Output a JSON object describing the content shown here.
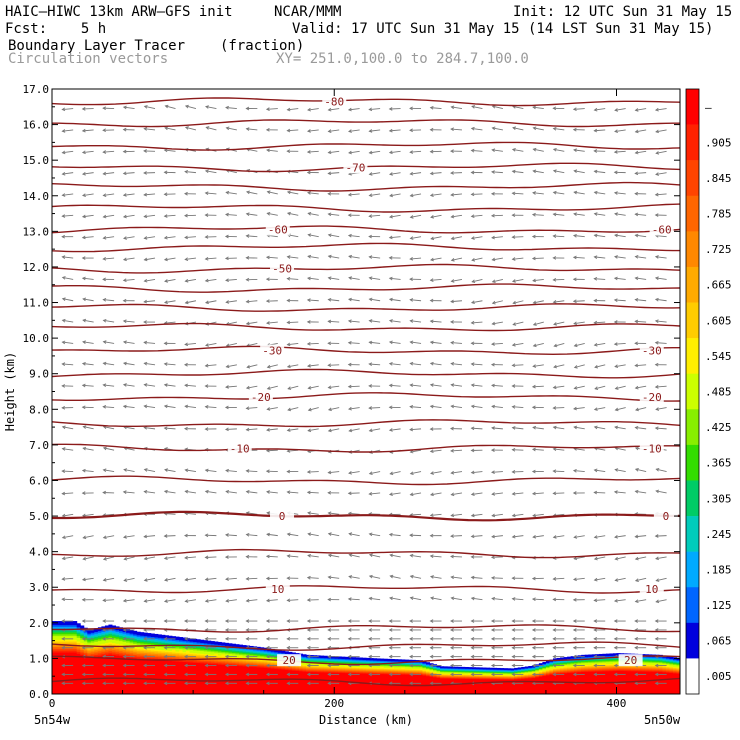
{
  "header": {
    "model": "HAIC–HIWC 13km ARW–GFS init",
    "org": "NCAR/MMM",
    "init": "Init: 12 UTC Sun 31 May 15",
    "fcst": "Fcst:    5 h",
    "valid": "Valid: 17 UTC Sun 31 May 15 (14 LST Sun 31 May 15)",
    "field1": "Boundary Layer Tracer",
    "field1_units": "(fraction)",
    "field2": "Circulation vectors",
    "xy": "XY= 251.0,100.0 to 284.7,100.0"
  },
  "chart_data": {
    "type": "heatmap",
    "ylabel": "Height (km)",
    "xlabel": "Distance (km)",
    "x_left_label": "5n54w",
    "x_right_label": "5n50w",
    "xlim": [
      0,
      445
    ],
    "ylim": [
      0,
      17
    ],
    "yticks": [
      "0.0",
      "1.0",
      "2.0",
      "3.0",
      "4.0",
      "5.0",
      "6.0",
      "7.0",
      "8.0",
      "9.0",
      "10.0",
      "11.0",
      "12.0",
      "13.0",
      "14.0",
      "15.0",
      "16.0",
      "17.0"
    ],
    "xticks": [
      0,
      200,
      400
    ],
    "xtick_labels": [
      "0",
      "200",
      "400"
    ],
    "colorbar": {
      "labels": [
        "–",
        ".905",
        ".845",
        ".785",
        ".725",
        ".665",
        ".605",
        ".545",
        ".485",
        ".425",
        ".365",
        ".305",
        ".245",
        ".185",
        ".125",
        ".065",
        ".005"
      ],
      "colors": [
        "#ff0000",
        "#ff2200",
        "#ff4400",
        "#ff6600",
        "#ff8800",
        "#ffaa00",
        "#ffcc00",
        "#ffee00",
        "#ccff00",
        "#88ee00",
        "#33dd00",
        "#00cc66",
        "#00ccbb",
        "#00aaff",
        "#0066ff",
        "#0000dd",
        "#ffffff"
      ]
    },
    "contour_color": "#8b1a1a",
    "contour_levels_m": [
      {
        "z": 0.35
      },
      {
        "z": 0.95,
        "label": "20",
        "lx": [
          168,
          410
        ]
      },
      {
        "z": 1.35
      },
      {
        "z": 1.85
      },
      {
        "z": 2.95,
        "label": "10",
        "lx": [
          160,
          425
        ]
      },
      {
        "z": 3.95
      },
      {
        "z": 5.0,
        "label": "0",
        "lx": [
          163,
          435
        ],
        "bold": true
      },
      {
        "z": 6.0
      },
      {
        "z": 6.9,
        "label": "-10",
        "lx": [
          133,
          425
        ]
      },
      {
        "z": 7.6
      },
      {
        "z": 8.35,
        "label": "-20",
        "lx": [
          148,
          425
        ]
      },
      {
        "z": 9.0
      },
      {
        "z": 9.65,
        "label": "-30",
        "lx": [
          156,
          425
        ]
      },
      {
        "z": 10.3
      },
      {
        "z": 10.85
      },
      {
        "z": 11.4
      },
      {
        "z": 11.95,
        "label": "-50",
        "lx": [
          163
        ]
      },
      {
        "z": 12.55
      },
      {
        "z": 13.05,
        "label": "-60",
        "lx": [
          160,
          432
        ]
      },
      {
        "z": 13.65
      },
      {
        "z": 14.25
      },
      {
        "z": 14.8,
        "label": "-70",
        "lx": [
          215
        ]
      },
      {
        "z": 15.4
      },
      {
        "z": 16.05
      },
      {
        "z": 16.65,
        "label": "-80",
        "lx": [
          200
        ]
      }
    ],
    "tracer_top_km": [
      [
        0,
        2.05
      ],
      [
        15,
        2.05
      ],
      [
        25,
        1.8
      ],
      [
        40,
        1.95
      ],
      [
        60,
        1.75
      ],
      [
        100,
        1.55
      ],
      [
        150,
        1.3
      ],
      [
        180,
        1.1
      ],
      [
        230,
        1.0
      ],
      [
        260,
        0.95
      ],
      [
        275,
        0.78
      ],
      [
        300,
        0.75
      ],
      [
        325,
        0.72
      ],
      [
        340,
        0.8
      ],
      [
        355,
        1.0
      ],
      [
        375,
        1.1
      ],
      [
        400,
        1.15
      ],
      [
        430,
        1.1
      ],
      [
        445,
        1.0
      ]
    ],
    "legend": "right"
  }
}
